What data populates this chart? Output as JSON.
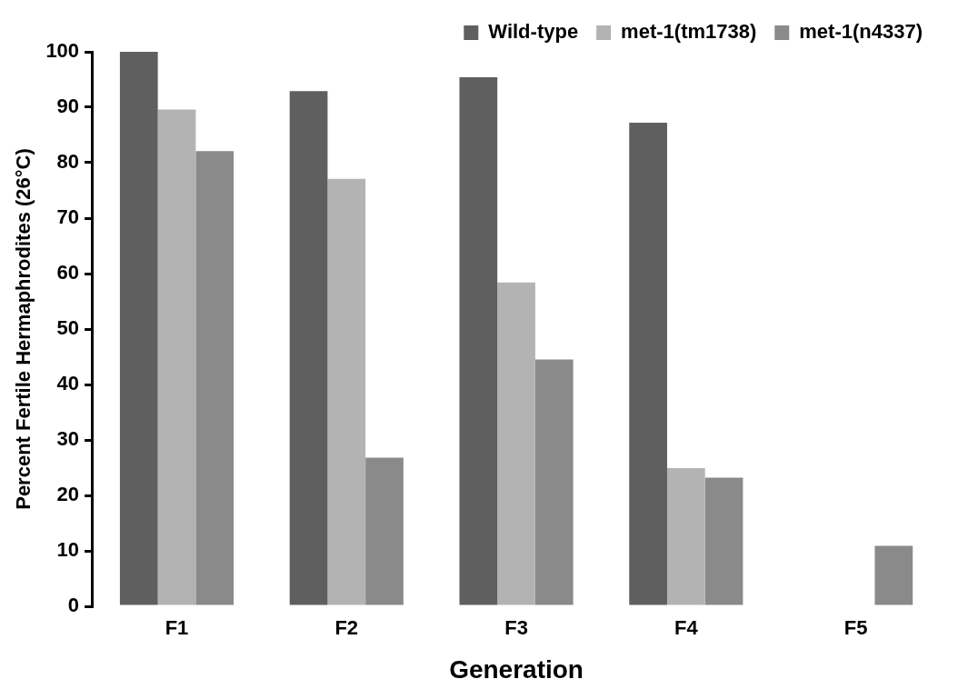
{
  "chart_data": {
    "type": "bar",
    "xlabel": "Generation",
    "ylabel": "Percent Fertile Hermaphrodites (26°C)",
    "categories": [
      "F1",
      "F2",
      "F3",
      "F4",
      "F5"
    ],
    "series": [
      {
        "name": "Wild-type",
        "color": "#5f5f5f",
        "values": [
          100,
          92.9,
          95.4,
          87.2,
          0
        ]
      },
      {
        "name": "met-1(tm1738)",
        "color": "#b3b3b3",
        "values": [
          89.6,
          77.1,
          58.4,
          24.9,
          0
        ]
      },
      {
        "name": "met-1(n4337)",
        "color": "#8a8a8a",
        "values": [
          82.1,
          26.8,
          44.5,
          23.2,
          10.9
        ]
      }
    ],
    "ylim": [
      0,
      100
    ],
    "yticks": [
      0,
      10,
      20,
      30,
      40,
      50,
      60,
      70,
      80,
      90,
      100
    ],
    "grid": false,
    "legend": "top right"
  }
}
